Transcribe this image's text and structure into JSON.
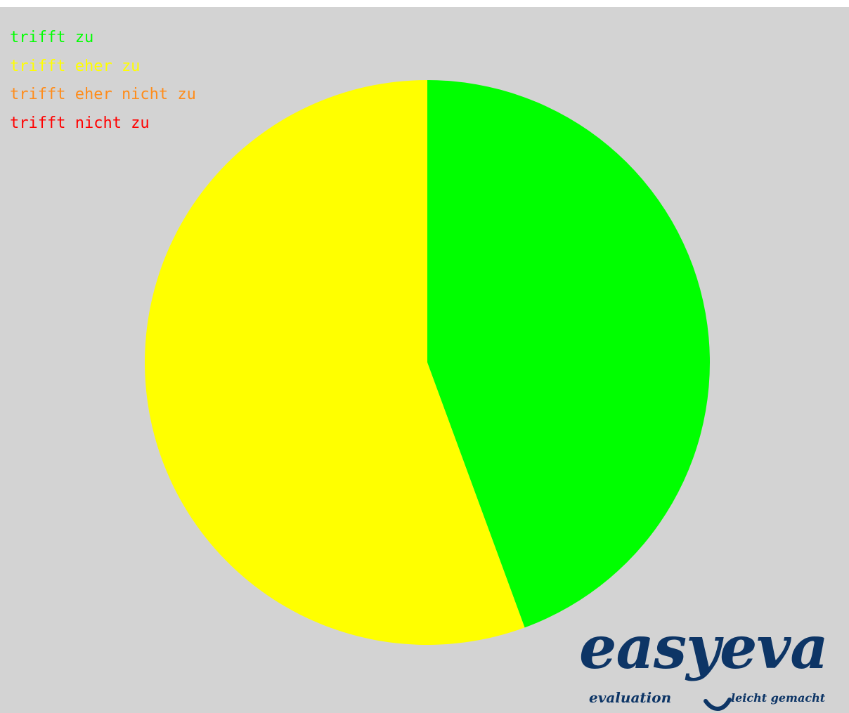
{
  "chart_data": {
    "type": "pie",
    "categories": [
      "trifft zu",
      "trifft eher zu",
      "trifft eher nicht zu",
      "trifft nicht zu"
    ],
    "values": [
      44.4,
      55.6,
      0,
      0
    ],
    "colors": [
      "#00ff00",
      "#ffff00",
      "#ff8c1a",
      "#ff0000"
    ],
    "legend": "top-left",
    "start_angle_deg": 0,
    "direction": "clockwise",
    "background": "#d3d3d3"
  },
  "logo": {
    "main": "easyeva",
    "sub_left": "evaluation",
    "sub_right": "leicht gemacht"
  }
}
